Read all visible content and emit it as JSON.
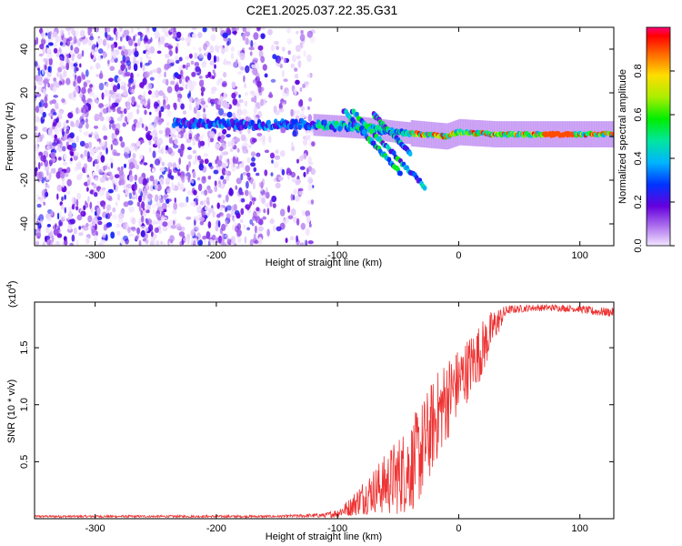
{
  "title": "C2E1.2025.037.22.35.G31",
  "chart_data": [
    {
      "type": "heatmap",
      "xlabel": "Height of straight line (km)",
      "ylabel": "Frequency (Hz)",
      "xlim": [
        -350,
        128
      ],
      "ylim": [
        -50,
        50
      ],
      "x_ticks": [
        -300,
        -200,
        -100,
        0,
        100
      ],
      "y_ticks": [
        -40,
        -20,
        0,
        20,
        40
      ],
      "colorbar": {
        "label": "Normalized spectral amplitude",
        "range": [
          0,
          1
        ],
        "ticks": [
          0.0,
          0.2,
          0.4,
          0.6,
          0.8
        ],
        "tick_labels": [
          "0.0",
          "0.2",
          "0.4",
          "0.6",
          "0.8"
        ]
      },
      "features": {
        "noise_region_x": [
          -350,
          -120
        ],
        "main_ridge": [
          {
            "x": -230,
            "y": 6
          },
          {
            "x": -200,
            "y": 6
          },
          {
            "x": -170,
            "y": 5
          },
          {
            "x": -140,
            "y": 6
          },
          {
            "x": -110,
            "y": 5
          },
          {
            "x": -80,
            "y": 4
          },
          {
            "x": -50,
            "y": 2
          },
          {
            "x": -30,
            "y": 1
          },
          {
            "x": -10,
            "y": 0
          },
          {
            "x": 0,
            "y": 2
          },
          {
            "x": 30,
            "y": 1
          },
          {
            "x": 60,
            "y": 1
          },
          {
            "x": 90,
            "y": 1
          },
          {
            "x": 128,
            "y": 1
          }
        ],
        "branches": [
          {
            "from": {
              "x": -95,
              "y": 12
            },
            "to": {
              "x": -48,
              "y": -17
            }
          },
          {
            "from": {
              "x": -88,
              "y": 12
            },
            "to": {
              "x": -28,
              "y": -23
            }
          },
          {
            "from": {
              "x": -70,
              "y": 10
            },
            "to": {
              "x": -40,
              "y": -8
            }
          }
        ]
      }
    },
    {
      "type": "line",
      "xlabel": "Height of straight line (km)",
      "ylabel": "SNR (10 * v/v)",
      "y_multiplier": "(x10",
      "y_multiplier_exp": "4",
      "y_multiplier_close": ")",
      "xlim": [
        -350,
        128
      ],
      "ylim": [
        0,
        1.9
      ],
      "x_ticks": [
        -300,
        -200,
        -100,
        0,
        100
      ],
      "y_ticks": [
        0.5,
        1.0,
        1.5
      ],
      "y_tick_labels": [
        "0.5",
        "1.0",
        "1.5"
      ],
      "color": "#ee3333",
      "series": [
        {
          "x": [
            -350,
            -300,
            -250,
            -200,
            -150,
            -110,
            -100,
            -90,
            -80,
            -70,
            -60,
            -50,
            -40,
            -30,
            -20,
            -10,
            0,
            10,
            20,
            30,
            40,
            60,
            80,
            100,
            110,
            128
          ],
          "y": [
            0.02,
            0.02,
            0.02,
            0.02,
            0.02,
            0.03,
            0.05,
            0.1,
            0.18,
            0.25,
            0.3,
            0.38,
            0.45,
            0.6,
            0.85,
            1.05,
            1.2,
            1.35,
            1.5,
            1.7,
            1.83,
            1.85,
            1.85,
            1.84,
            1.82,
            1.81
          ],
          "noise_amplitude": [
            0.01,
            0.01,
            0.01,
            0.01,
            0.01,
            0.02,
            0.04,
            0.08,
            0.15,
            0.2,
            0.28,
            0.35,
            0.4,
            0.45,
            0.4,
            0.38,
            0.3,
            0.28,
            0.25,
            0.15,
            0.04,
            0.03,
            0.03,
            0.03,
            0.04,
            0.04
          ]
        }
      ]
    }
  ]
}
